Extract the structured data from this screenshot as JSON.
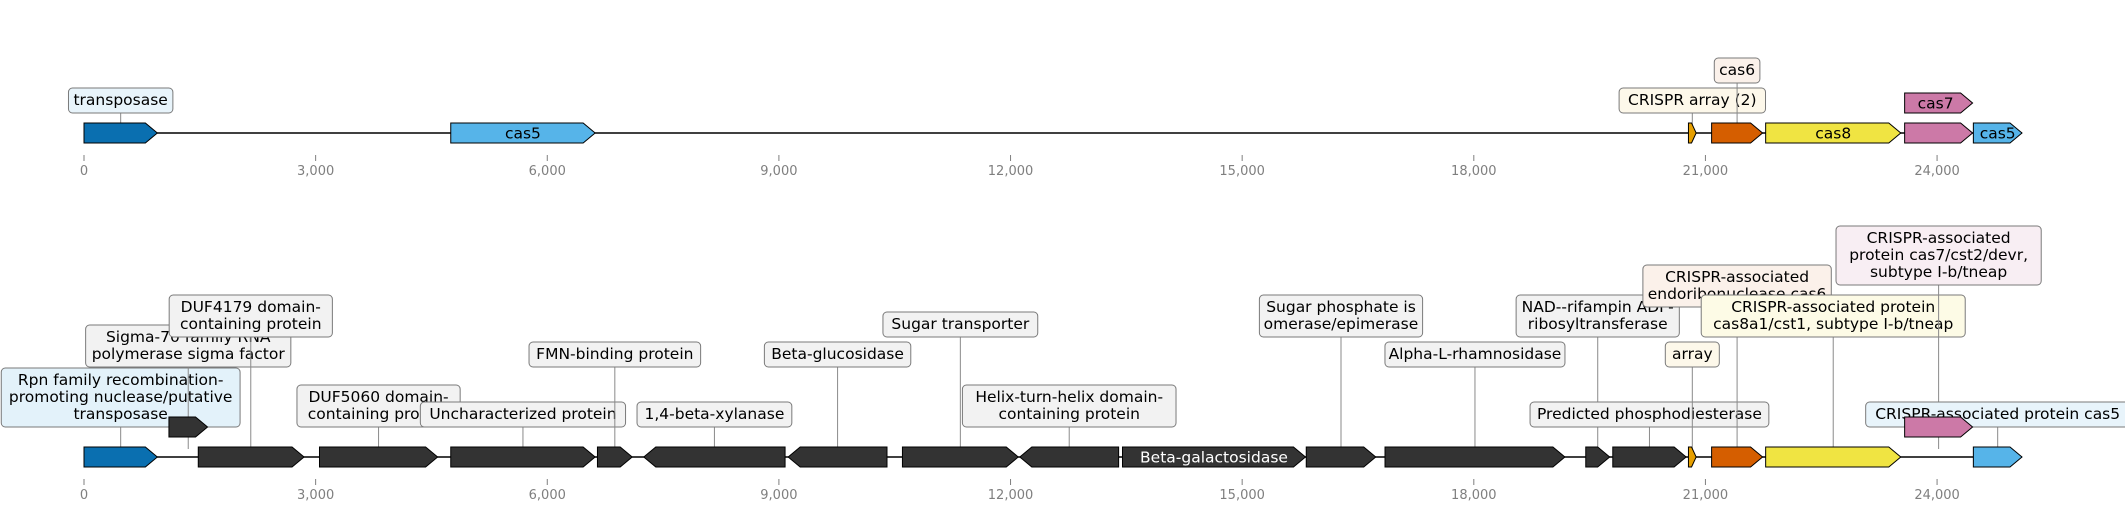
{
  "tracks": [
    {
      "axis": {
        "min": 0,
        "max": 25100,
        "ticks": [
          0,
          3000,
          6000,
          9000,
          12000,
          15000,
          18000,
          21000,
          24000
        ],
        "tick_labels": [
          "0",
          "3,000",
          "6,000",
          "9,000",
          "12,000",
          "15,000",
          "18,000",
          "21,000",
          "24,000"
        ]
      },
      "features": [
        {
          "start": 0,
          "end": 950,
          "strand": 1,
          "color": "#0a6fb0",
          "text": ""
        },
        {
          "start": 4750,
          "end": 6620,
          "strand": 1,
          "color": "#56b4e9",
          "text": "cas5"
        },
        {
          "start": 20780,
          "end": 20880,
          "strand": 1,
          "color": "#e69f00",
          "text": ""
        },
        {
          "start": 21080,
          "end": 21740,
          "strand": 1,
          "color": "#d55e00",
          "text": ""
        },
        {
          "start": 21780,
          "end": 23530,
          "strand": 1,
          "color": "#f0e442",
          "text": "cas8"
        },
        {
          "start": 23580,
          "end": 24460,
          "strand": 1,
          "color": "#cc79a7",
          "text": ""
        },
        {
          "start": 24470,
          "end": 25100,
          "strand": 1,
          "color": "#56b4e9",
          "text": "cas5"
        }
      ],
      "labels": [
        {
          "text": "transposase",
          "pos": 475,
          "bg": "#e8f4fb"
        },
        {
          "text": "CRISPR array (2)",
          "pos": 20830,
          "bg": "#fdf8ea"
        },
        {
          "text": "cas6",
          "pos": 21410,
          "bg": "#fbf1ea"
        },
        {
          "text": "cas7",
          "pos": 24020,
          "bg": "#cc79a7",
          "fill": true
        }
      ]
    },
    {
      "axis": {
        "min": 0,
        "max": 25100,
        "ticks": [
          0,
          3000,
          6000,
          9000,
          12000,
          15000,
          18000,
          21000,
          24000
        ],
        "tick_labels": [
          "0",
          "3,000",
          "6,000",
          "9,000",
          "12,000",
          "15,000",
          "18,000",
          "21,000",
          "24,000"
        ]
      },
      "features": [
        {
          "start": 0,
          "end": 950,
          "strand": 1,
          "color": "#0a6fb0",
          "text": ""
        },
        {
          "start": 1100,
          "end": 1600,
          "strand": 1,
          "color": "#333333",
          "text": "",
          "offset": true
        },
        {
          "start": 1480,
          "end": 2850,
          "strand": 1,
          "color": "#333333",
          "text": ""
        },
        {
          "start": 3050,
          "end": 4580,
          "strand": 1,
          "color": "#333333",
          "text": ""
        },
        {
          "start": 4750,
          "end": 6620,
          "strand": 1,
          "color": "#333333",
          "text": ""
        },
        {
          "start": 6650,
          "end": 7100,
          "strand": 1,
          "color": "#333333",
          "text": ""
        },
        {
          "start": 7250,
          "end": 9080,
          "strand": -1,
          "color": "#333333",
          "text": ""
        },
        {
          "start": 9120,
          "end": 10400,
          "strand": -1,
          "color": "#333333",
          "text": ""
        },
        {
          "start": 10600,
          "end": 12100,
          "strand": 1,
          "color": "#333333",
          "text": ""
        },
        {
          "start": 12120,
          "end": 13400,
          "strand": -1,
          "color": "#333333",
          "text": ""
        },
        {
          "start": 13450,
          "end": 15820,
          "strand": 1,
          "color": "#333333",
          "text": "Beta-galactosidase"
        },
        {
          "start": 15830,
          "end": 16730,
          "strand": 1,
          "color": "#333333",
          "text": ""
        },
        {
          "start": 16850,
          "end": 19180,
          "strand": 1,
          "color": "#333333",
          "text": ""
        },
        {
          "start": 19450,
          "end": 19760,
          "strand": 1,
          "color": "#333333",
          "text": ""
        },
        {
          "start": 19800,
          "end": 20750,
          "strand": 1,
          "color": "#333333",
          "text": ""
        },
        {
          "start": 20780,
          "end": 20880,
          "strand": 1,
          "color": "#e69f00",
          "text": ""
        },
        {
          "start": 21080,
          "end": 21740,
          "strand": 1,
          "color": "#d55e00",
          "text": ""
        },
        {
          "start": 21780,
          "end": 23530,
          "strand": 1,
          "color": "#f0e442",
          "text": ""
        },
        {
          "start": 23580,
          "end": 24460,
          "strand": 1,
          "color": "#cc79a7",
          "text": "",
          "offset": true
        },
        {
          "start": 24470,
          "end": 25100,
          "strand": 1,
          "color": "#56b4e9",
          "text": ""
        }
      ],
      "labels": [
        {
          "text": "Rpn family recombination-\npromoting nuclease/putative\ntransposase",
          "pos": 475,
          "bg": "#e3f2fa",
          "level": 0
        },
        {
          "text": "Sigma-70 family RNA\npolymerase sigma factor",
          "pos": 1350,
          "bg": "#f2f2f2",
          "level": 1
        },
        {
          "text": "DUF4179 domain-\ncontaining protein",
          "pos": 2160,
          "bg": "#f2f2f2",
          "level": 2
        },
        {
          "text": "DUF5060 domain-\ncontaining protein",
          "pos": 3815,
          "bg": "#f2f2f2",
          "level": 0
        },
        {
          "text": "Uncharacterized protein",
          "pos": 5685,
          "bg": "#f2f2f2",
          "level": 0
        },
        {
          "text": "FMN-binding protein",
          "pos": 6875,
          "bg": "#f2f2f2",
          "level": 1
        },
        {
          "text": "1,4-beta-xylanase",
          "pos": 8165,
          "bg": "#f2f2f2",
          "level": 0
        },
        {
          "text": "Beta-glucosidase",
          "pos": 9760,
          "bg": "#f2f2f2",
          "level": 1
        },
        {
          "text": "Sugar transporter",
          "pos": 11350,
          "bg": "#f2f2f2",
          "level": 2
        },
        {
          "text": "Helix-turn-helix domain-\ncontaining protein",
          "pos": 12760,
          "bg": "#f2f2f2",
          "level": 0
        },
        {
          "text": "Sugar phosphate is\nomerase/epimerase",
          "pos": 16280,
          "bg": "#f2f2f2",
          "level": 2
        },
        {
          "text": "Alpha-L-rhamnosidase",
          "pos": 18015,
          "bg": "#f2f2f2",
          "level": 1
        },
        {
          "text": "NAD--rifampin ADP-\nribosyltransferase",
          "pos": 19605,
          "bg": "#f2f2f2",
          "level": 2
        },
        {
          "text": "Predicted phosphodiesterase",
          "pos": 20275,
          "bg": "#f2f2f2",
          "level": 0
        },
        {
          "text": "array",
          "pos": 20830,
          "bg": "#fdf8ea",
          "level": 1
        },
        {
          "text": "CRISPR-associated\nendoribonuclease cas6",
          "pos": 21410,
          "bg": "#fbf1ea",
          "level": 3
        },
        {
          "text": "CRISPR-associated protein\ncas8a1/cst1, subtype I-b/tneap",
          "pos": 22655,
          "bg": "#fdfbe6",
          "level": 2
        },
        {
          "text": "CRISPR-associated\nprotein cas7/cst2/devr,\nsubtype I-b/tneap",
          "pos": 24020,
          "bg": "#f8eef3",
          "level": 4
        },
        {
          "text": "CRISPR-associated protein cas5",
          "pos": 24785,
          "bg": "#e8f4fb",
          "level": 0
        }
      ]
    }
  ]
}
